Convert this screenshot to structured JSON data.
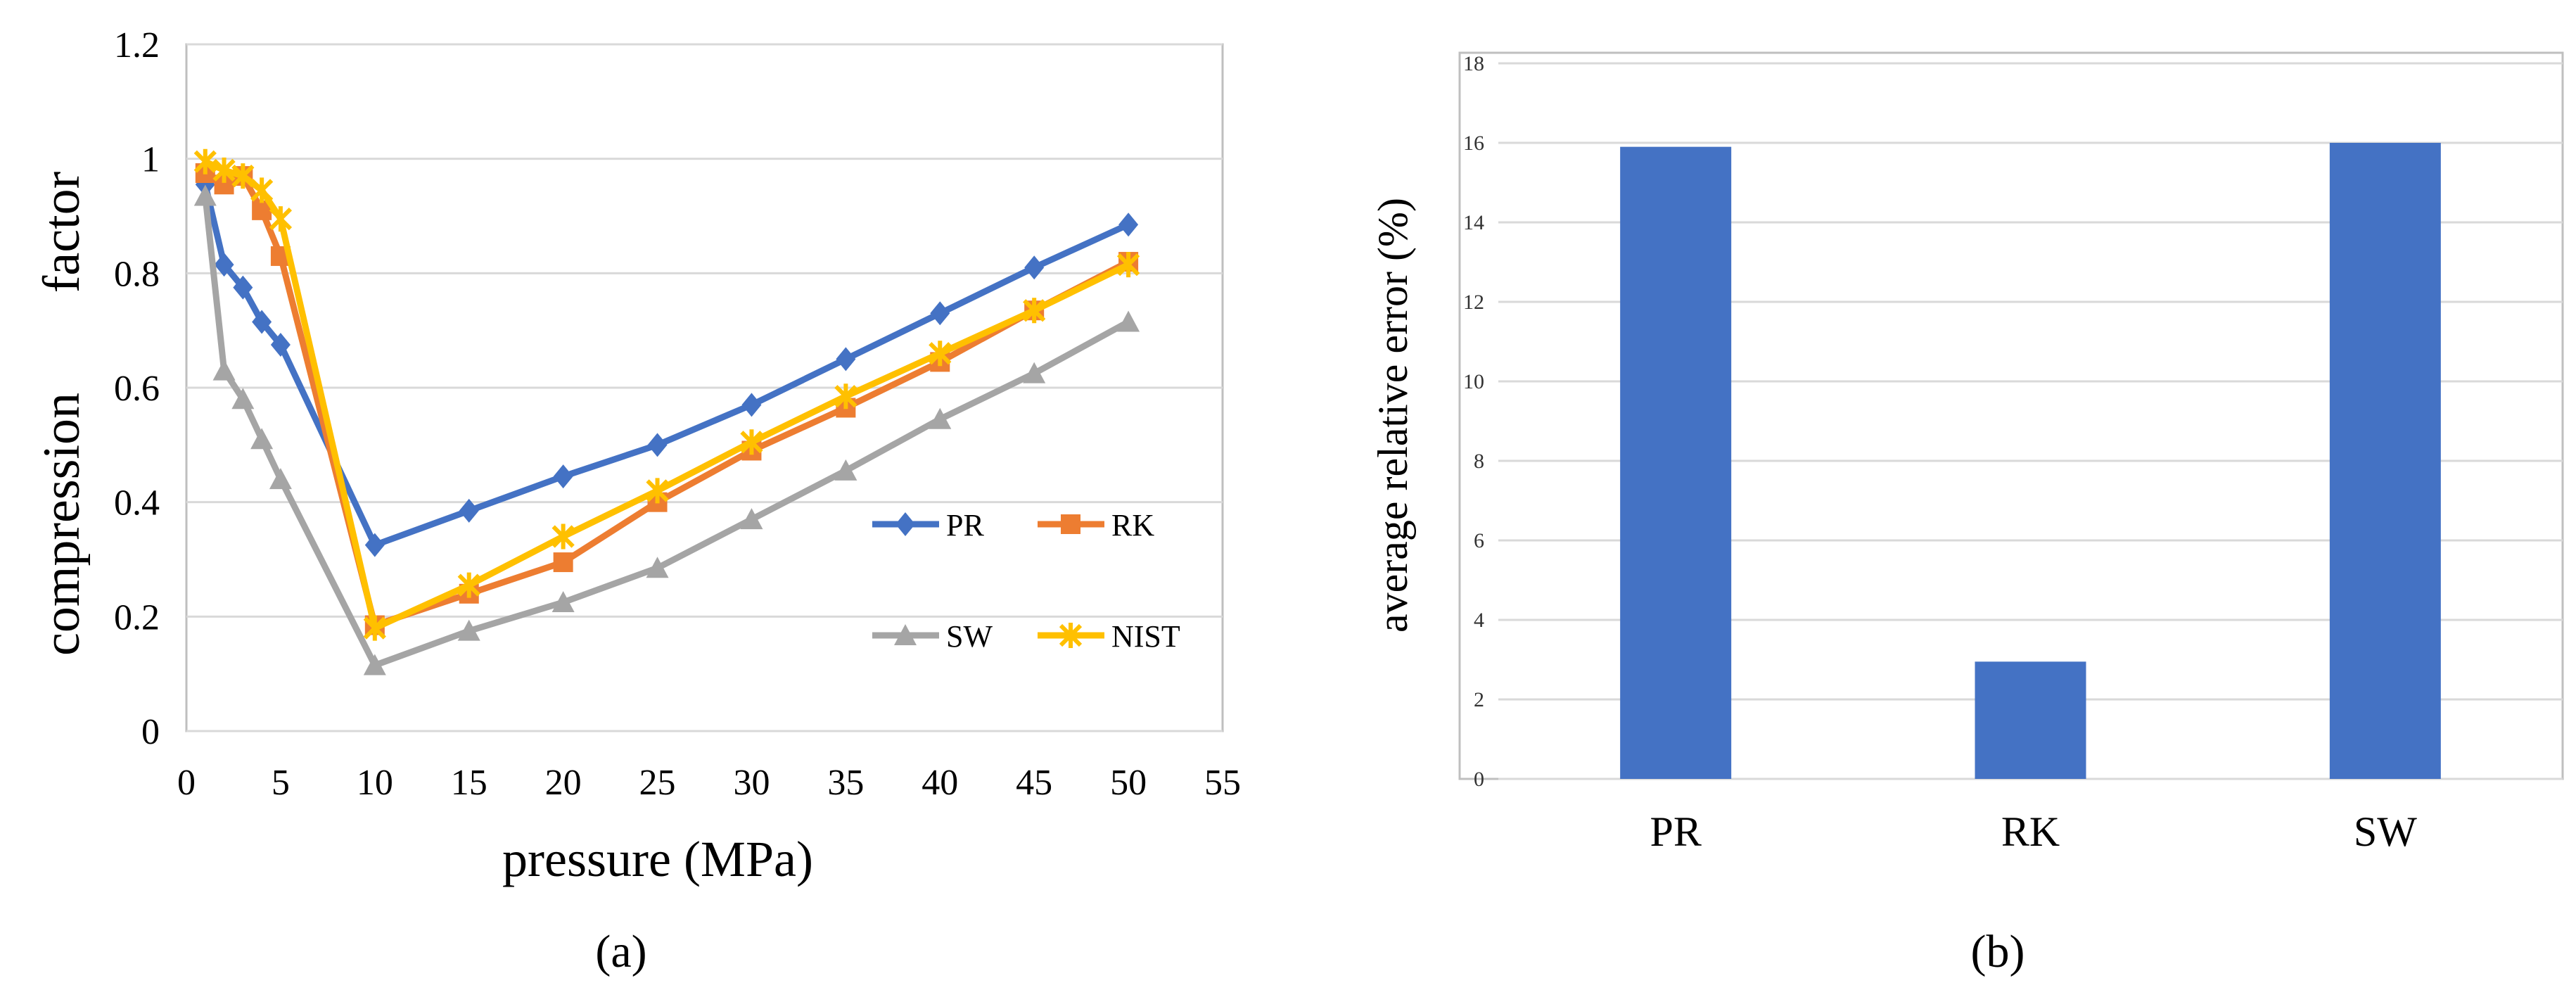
{
  "chart_data": [
    {
      "id": "a",
      "type": "line",
      "panel_label": "(a)",
      "xlabel": "pressure (MPa)",
      "ylabel_words": [
        "compression",
        "factor"
      ],
      "xlim": [
        0,
        55
      ],
      "ylim": [
        0,
        1.2
      ],
      "xticks": [
        0,
        5,
        10,
        15,
        20,
        25,
        30,
        35,
        40,
        45,
        50,
        55
      ],
      "yticks": [
        0,
        0.2,
        0.4,
        0.6,
        0.8,
        1,
        1.2
      ],
      "x": [
        1,
        2,
        3,
        4,
        5,
        10,
        15,
        20,
        25,
        30,
        35,
        40,
        45,
        50
      ],
      "series": [
        {
          "name": "PR",
          "color": "#4472c4",
          "marker": "diamond",
          "values": [
            0.955,
            0.815,
            0.775,
            0.715,
            0.675,
            0.325,
            0.385,
            0.445,
            0.5,
            0.57,
            0.65,
            0.73,
            0.81,
            0.885
          ]
        },
        {
          "name": "RK",
          "color": "#ed7d31",
          "marker": "square",
          "values": [
            0.975,
            0.955,
            0.97,
            0.91,
            0.83,
            0.185,
            0.24,
            0.295,
            0.4,
            0.49,
            0.565,
            0.645,
            0.735,
            0.82
          ]
        },
        {
          "name": "SW",
          "color": "#a5a5a5",
          "marker": "triangle",
          "values": [
            0.935,
            0.63,
            0.58,
            0.51,
            0.44,
            0.115,
            0.175,
            0.225,
            0.285,
            0.37,
            0.455,
            0.545,
            0.625,
            0.715
          ]
        },
        {
          "name": "NIST",
          "color": "#ffc000",
          "marker": "x",
          "values": [
            0.995,
            0.98,
            0.97,
            0.945,
            0.895,
            0.18,
            0.255,
            0.34,
            0.42,
            0.505,
            0.585,
            0.66,
            0.735,
            0.815
          ]
        }
      ]
    },
    {
      "id": "b",
      "type": "bar",
      "panel_label": "(b)",
      "ylabel": "average relative error (%)",
      "ylim": [
        0,
        18
      ],
      "yticks": [
        0,
        2,
        4,
        6,
        8,
        10,
        12,
        14,
        16,
        18
      ],
      "categories": [
        "PR",
        "RK",
        "SW"
      ],
      "values": [
        15.9,
        2.95,
        16.0
      ],
      "color": "#4472c4"
    }
  ]
}
